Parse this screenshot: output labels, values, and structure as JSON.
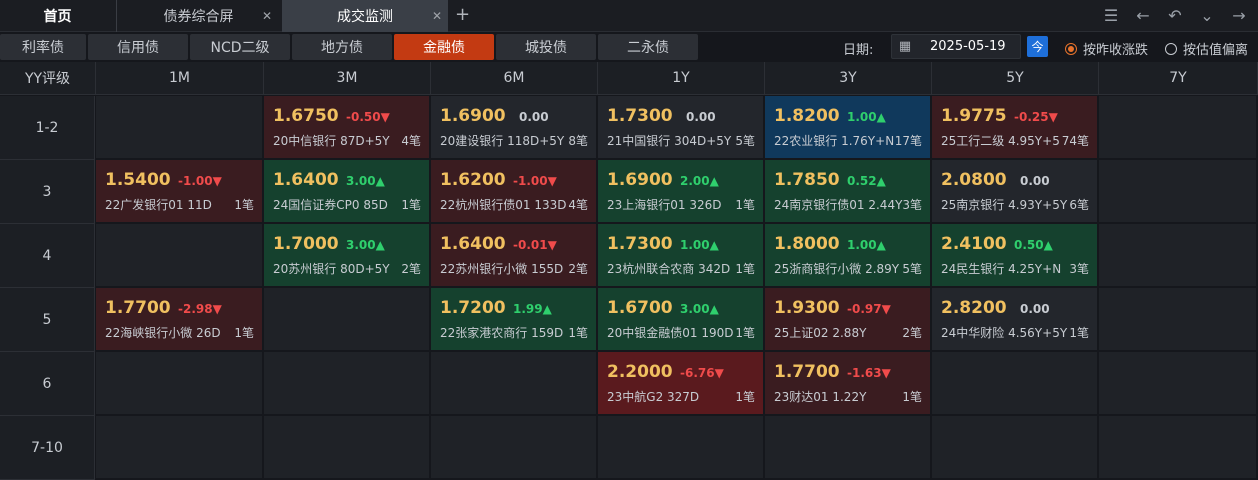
{
  "tabs": {
    "home": "首页",
    "t1": "债券综合屏",
    "t2": "成交监测"
  },
  "categories": [
    "利率债",
    "信用债",
    "NCD二级",
    "地方债",
    "金融债",
    "城投债",
    "二永债"
  ],
  "active_category": "金融债",
  "date": {
    "label": "日期:",
    "value": "2025-05-19"
  },
  "radios": [
    {
      "label": "按昨收涨跌",
      "checked": true
    },
    {
      "label": "按估值偏离",
      "checked": false
    }
  ],
  "columns": [
    "YY评级",
    "1M",
    "3M",
    "6M",
    "1Y",
    "3Y",
    "5Y",
    "7Y"
  ],
  "rows": [
    "1-2",
    "3",
    "4",
    "5",
    "6",
    "7-10"
  ],
  "cells": [
    {
      "r": 0,
      "c": 1,
      "price": "1.6750",
      "chg": "-0.50▼",
      "dir": "neg",
      "name": "20中信银行 87D+5Y",
      "cnt": "4笔",
      "bg": "down"
    },
    {
      "r": 0,
      "c": 2,
      "price": "1.6900",
      "chg": "0.00",
      "dir": "zero",
      "name": "20建设银行 118D+5Y",
      "cnt": "8笔",
      "bg": "flat"
    },
    {
      "r": 0,
      "c": 3,
      "price": "1.7300",
      "chg": "0.00",
      "dir": "zero",
      "name": "21中国银行 304D+5Y",
      "cnt": "5笔",
      "bg": "flat"
    },
    {
      "r": 0,
      "c": 4,
      "price": "1.8200",
      "chg": "1.00▲",
      "dir": "pos",
      "name": "22农业银行 1.76Y+N",
      "cnt": "17笔",
      "bg": "blue"
    },
    {
      "r": 0,
      "c": 5,
      "price": "1.9775",
      "chg": "-0.25▼",
      "dir": "neg",
      "name": "25工行二级 4.95Y+5",
      "cnt": "74笔",
      "bg": "down"
    },
    {
      "r": 1,
      "c": 0,
      "price": "1.5400",
      "chg": "-1.00▼",
      "dir": "neg",
      "name": "22广发银行01 11D",
      "cnt": "1笔",
      "bg": "down"
    },
    {
      "r": 1,
      "c": 1,
      "price": "1.6400",
      "chg": "3.00▲",
      "dir": "pos",
      "name": "24国信证券CP0 85D",
      "cnt": "1笔",
      "bg": "up"
    },
    {
      "r": 1,
      "c": 2,
      "price": "1.6200",
      "chg": "-1.00▼",
      "dir": "neg",
      "name": "22杭州银行债01 133D",
      "cnt": "4笔",
      "bg": "down"
    },
    {
      "r": 1,
      "c": 3,
      "price": "1.6900",
      "chg": "2.00▲",
      "dir": "pos",
      "name": "23上海银行01 326D",
      "cnt": "1笔",
      "bg": "up"
    },
    {
      "r": 1,
      "c": 4,
      "price": "1.7850",
      "chg": "0.52▲",
      "dir": "pos",
      "name": "24南京银行债01 2.44Y",
      "cnt": "3笔",
      "bg": "up"
    },
    {
      "r": 1,
      "c": 5,
      "price": "2.0800",
      "chg": "0.00",
      "dir": "zero",
      "name": "25南京银行 4.93Y+5Y",
      "cnt": "6笔",
      "bg": "flat"
    },
    {
      "r": 2,
      "c": 1,
      "price": "1.7000",
      "chg": "3.00▲",
      "dir": "pos",
      "name": "20苏州银行 80D+5Y",
      "cnt": "2笔",
      "bg": "up"
    },
    {
      "r": 2,
      "c": 2,
      "price": "1.6400",
      "chg": "-0.01▼",
      "dir": "neg",
      "name": "22苏州银行小微 155D",
      "cnt": "2笔",
      "bg": "down"
    },
    {
      "r": 2,
      "c": 3,
      "price": "1.7300",
      "chg": "1.00▲",
      "dir": "pos",
      "name": "23杭州联合农商 342D",
      "cnt": "1笔",
      "bg": "up"
    },
    {
      "r": 2,
      "c": 4,
      "price": "1.8000",
      "chg": "1.00▲",
      "dir": "pos",
      "name": "25浙商银行小微 2.89Y",
      "cnt": "5笔",
      "bg": "up"
    },
    {
      "r": 2,
      "c": 5,
      "price": "2.4100",
      "chg": "0.50▲",
      "dir": "pos",
      "name": "24民生银行 4.25Y+N",
      "cnt": "3笔",
      "bg": "up"
    },
    {
      "r": 3,
      "c": 0,
      "price": "1.7700",
      "chg": "-2.98▼",
      "dir": "neg",
      "name": "22海峡银行小微 26D",
      "cnt": "1笔",
      "bg": "down"
    },
    {
      "r": 3,
      "c": 2,
      "price": "1.7200",
      "chg": "1.99▲",
      "dir": "pos",
      "name": "22张家港农商行 159D",
      "cnt": "1笔",
      "bg": "up"
    },
    {
      "r": 3,
      "c": 3,
      "price": "1.6700",
      "chg": "3.00▲",
      "dir": "pos",
      "name": "20中银金融债01 190D",
      "cnt": "1笔",
      "bg": "up"
    },
    {
      "r": 3,
      "c": 4,
      "price": "1.9300",
      "chg": "-0.97▼",
      "dir": "neg",
      "name": "25上证02 2.88Y",
      "cnt": "2笔",
      "bg": "down"
    },
    {
      "r": 3,
      "c": 5,
      "price": "2.8200",
      "chg": "0.00",
      "dir": "zero",
      "name": "24中华财险 4.56Y+5Y",
      "cnt": "1笔",
      "bg": "flat"
    },
    {
      "r": 4,
      "c": 3,
      "price": "2.2000",
      "chg": "-6.76▼",
      "dir": "neg",
      "name": "23中航G2 327D",
      "cnt": "1笔",
      "bg": "downstrong"
    },
    {
      "r": 4,
      "c": 4,
      "price": "1.7700",
      "chg": "-1.63▼",
      "dir": "neg",
      "name": "23财达01 1.22Y",
      "cnt": "1笔",
      "bg": "down"
    }
  ]
}
